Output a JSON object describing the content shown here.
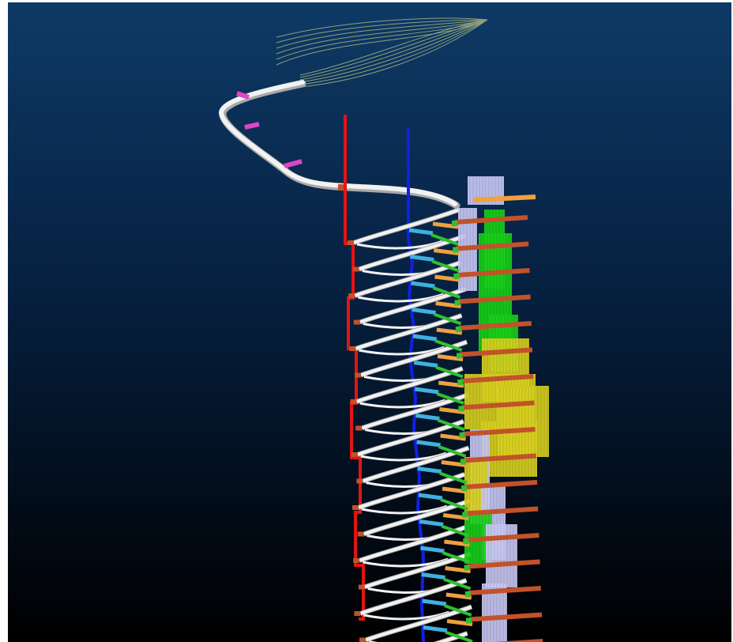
{
  "viewer": {
    "background_top": "#0e3a66",
    "background_bottom": "#000000",
    "colors": {
      "surface_contours": "#8fa07a",
      "decline_ramp": "#f2f2f2",
      "decline_shadow": "#a9a9a9",
      "red_string": "#e31414",
      "blue_string": "#1020e6",
      "magenta_stub": "#e044c8",
      "orange_segment": "#f0a040",
      "cyan_segment": "#3fb0e0",
      "green_segment": "#30c030",
      "brown_level": "#c2522a",
      "stope_lavender": "#c8c8f4",
      "stope_green": "#18d018",
      "stope_yellow": "#d8d020"
    },
    "objects": [
      {
        "name": "surface-contours",
        "icon": "contour-lines"
      },
      {
        "name": "decline-ramp",
        "icon": "ramp-tube"
      },
      {
        "name": "vertical-string-red",
        "icon": "polyline"
      },
      {
        "name": "vertical-string-blue",
        "icon": "polyline"
      },
      {
        "name": "stope-blocks",
        "icon": "solid-blocks"
      }
    ]
  }
}
